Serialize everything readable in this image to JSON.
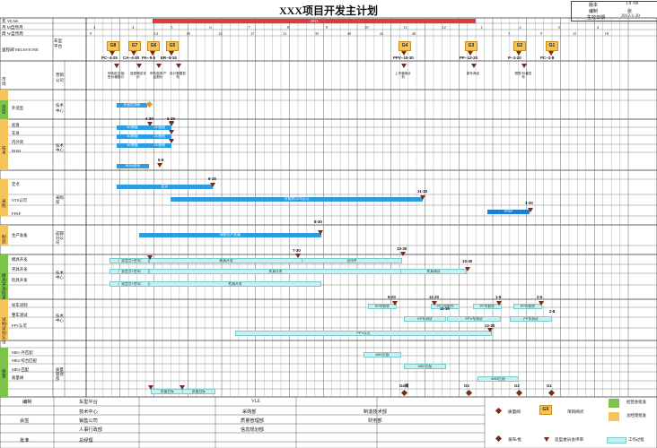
{
  "doc": {
    "title": "XXX项目开发主计划",
    "info": [
      {
        "label": "版本",
        "value": "1.0 -00"
      },
      {
        "label": "编制",
        "value": "张"
      },
      {
        "label": "生效日期",
        "value": "2012-1-20"
      }
    ]
  },
  "header": {
    "year_label": "年 YEAR",
    "month_label": "月 M自然月",
    "week_label": "周 W自然周",
    "milestone_label": "里程碑 MILESTONE",
    "car_platform": "车型平台",
    "year_banner": "2013",
    "months": [
      "3",
      "4",
      "5",
      "6",
      "7",
      "8",
      "9",
      "10",
      "11",
      "12",
      "1",
      "2",
      "3",
      "4"
    ],
    "weeks": [
      "9",
      "",
      "14",
      "18",
      "22",
      "27",
      "31",
      "35",
      "40",
      "44",
      "48",
      "",
      "",
      "5",
      "9",
      "13",
      "18"
    ]
  },
  "gates": [
    {
      "code": "G8",
      "date": "PC--4-25"
    },
    {
      "code": "G7",
      "date": "CA--4-30"
    },
    {
      "code": "G6",
      "date": "PA--5-5"
    },
    {
      "code": "G5",
      "date": "ER--5-15"
    },
    {
      "code": "G4",
      "date": "PPV--10-30"
    },
    {
      "code": "G3",
      "date": "PP--12-20"
    },
    {
      "code": "G2",
      "date": "P--1-20"
    },
    {
      "code": "G1",
      "date": "PC--2-8"
    }
  ],
  "milestone_text_row": {
    "dept": "营销公司",
    "notes": [
      "市场定位/销售价格指引",
      "造型概念评价",
      "市场选择/产品报价",
      "设计数据发布",
      "上市营销计划",
      "新车命名",
      "预售/价格发布"
    ]
  },
  "sections": [
    {
      "name": "市场"
    },
    {
      "name": "造型",
      "rows": [
        {
          "label": "外造型",
          "dept": "技术中心"
        }
      ]
    },
    {
      "name": "技术",
      "rows": [
        {
          "label": "底盘"
        },
        {
          "label": "车身"
        },
        {
          "label": "内外饰"
        },
        {
          "label": "BOM"
        }
      ],
      "dept": "技术中心"
    },
    {
      "name": "采购",
      "rows": [
        {
          "label": "定点"
        },
        {
          "label": "OTS认可"
        },
        {
          "label": "PPAP"
        }
      ],
      "dept": "采购部"
    },
    {
      "name": "制造",
      "rows": [
        {
          "label": "生产准备"
        }
      ],
      "dept": "成都分公司"
    },
    {
      "name": "模具/夹具/检具",
      "rows": [
        {
          "label": "模具开发"
        },
        {
          "label": "夹具开发"
        },
        {
          "label": "检具开发"
        }
      ],
      "dept": "技术中心"
    },
    {
      "name": "试制/试验/认证",
      "rows": [
        {
          "label": "样车试制"
        },
        {
          "label": "整车测试"
        },
        {
          "label": "PPV认可"
        }
      ],
      "dept": "技术中心"
    },
    {
      "name": "质量",
      "rows": [
        {
          "label": "MB1-外匹配"
        },
        {
          "label": "MB2-综合匹配"
        },
        {
          "label": "MB3-匹配"
        },
        {
          "label": "质量阀"
        }
      ],
      "dept": "质量管理部"
    }
  ],
  "bars": {
    "exterior": "外造型冻结",
    "chassis": [
      "3D数据",
      "2D图纸"
    ],
    "body": [
      "3D数据",
      "2D图纸"
    ],
    "trim": [
      "3D数据",
      "2D图纸"
    ],
    "bom": "BOM发布",
    "dingdian": "定点",
    "ots": "外购件OTS认可",
    "ppap": "PPAP",
    "prod_prep": "成都生产准备",
    "mould": [
      "厂家定点+合同",
      "模具开发",
      "模具调试",
      "全序件"
    ],
    "fixture": [
      "厂家定点+合同",
      "夹具开发",
      "夹具调试"
    ],
    "gauge": [
      "厂家定点+合同",
      "检具开发"
    ],
    "proto": [
      "EP车制作",
      "PPV车制作",
      "PP车制作"
    ],
    "test": [
      "EP车测试",
      "PPV车测试",
      "PP车测试"
    ],
    "ppv": "PPV认可",
    "mb1": "MB1匹配",
    "mb2": "MB2匹配",
    "mb3": "MB3匹配",
    "quality": [
      "质量目标",
      "质量目标"
    ]
  },
  "dates": {
    "ext": "4-30",
    "tech1": "4-30",
    "tech2": "5-15",
    "bom": "5-5",
    "dingdian": "6-15",
    "ots": "11-15",
    "ppap": "1-30",
    "prod": "8-30",
    "mould1": "7-30",
    "mould2": "10-30",
    "mould3": "10-30",
    "proto1": "9-20",
    "proto2": "11-20",
    "proto3": "1-5",
    "proto4": "2-5",
    "test1": "11-30",
    "test2": "2-8",
    "ppv": "12-30",
    "qgate1": "G4阀",
    "qgate2": "G3",
    "qgate3": "G2",
    "qgate4": "G1"
  },
  "footer": {
    "compile": "编制",
    "sign": "会签",
    "approve": "批准",
    "depts": [
      "车型平台",
      "VLE",
      "技术中心",
      "采购部",
      "制造技术部",
      "销售公司",
      "质量管理部",
      "财务部",
      "人事行政部",
      "信息规划部",
      "总经理"
    ],
    "legend": [
      {
        "label": "质量阀"
      },
      {
        "label": "项目阀点",
        "code": "GX"
      },
      {
        "label": "经营会批准"
      },
      {
        "label": "总经理批准"
      },
      {
        "label": "发布/批"
      },
      {
        "label": "造型委员会评审"
      },
      {
        "label": "工作过程"
      }
    ]
  },
  "colors": {
    "bar": "#2e9ce0",
    "gate": "#f5c35a",
    "work": "#c9eff2",
    "milestone": "#7a2a18",
    "sect_green": "#7cc34a",
    "sect_yellow": "#f5c35a"
  }
}
